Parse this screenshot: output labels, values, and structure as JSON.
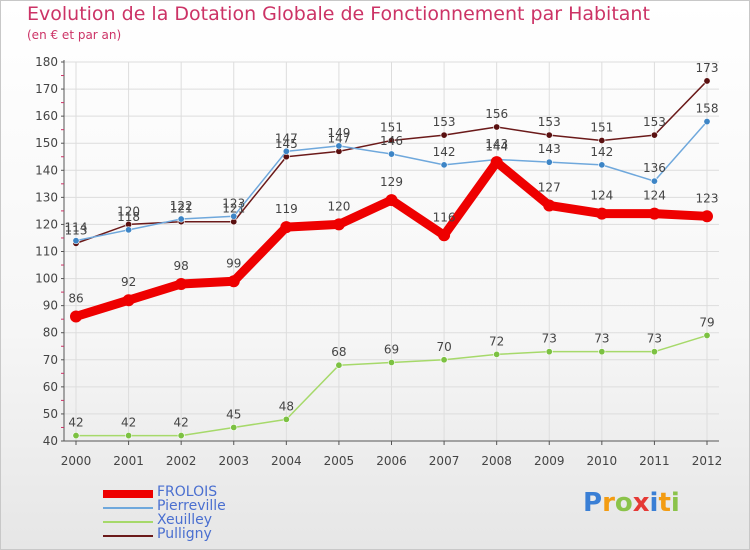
{
  "title": "Evolution de la Dotation Globale de Fonctionnement par Habitant",
  "subtitle": "(en € et par an)",
  "logo": [
    "P",
    "r",
    "o",
    "x",
    "i",
    "t",
    "i"
  ],
  "logo_colors": [
    "#3a7fd5",
    "#f39c12",
    "#8bc34a",
    "#e53935",
    "#3a7fd5",
    "#f39c12",
    "#8bc34a"
  ],
  "chart_data": {
    "type": "line",
    "title": "Evolution de la Dotation Globale de Fonctionnement par Habitant",
    "subtitle": "(en € et par an)",
    "xlabel": "",
    "ylabel": "",
    "categories": [
      "2000",
      "2001",
      "2002",
      "2003",
      "2004",
      "2005",
      "2006",
      "2007",
      "2008",
      "2009",
      "2010",
      "2011",
      "2012"
    ],
    "ylim": [
      40,
      180
    ],
    "yticks": [
      40,
      50,
      60,
      70,
      80,
      90,
      100,
      110,
      120,
      130,
      140,
      150,
      160,
      170,
      180
    ],
    "grid": true,
    "legend_position": "bottom-left",
    "series": [
      {
        "name": "Pulligny",
        "color": "#6b1a1a",
        "dot": "#5a1010",
        "values": [
          113,
          120,
          121,
          121,
          145,
          147,
          151,
          153,
          156,
          153,
          151,
          153,
          173
        ]
      },
      {
        "name": "Pierreville",
        "color": "#6fa8dc",
        "dot": "#3d85c6",
        "values": [
          114,
          118,
          122,
          123,
          147,
          149,
          146,
          142,
          144,
          143,
          142,
          136,
          158
        ]
      },
      {
        "name": "Xeuilley",
        "color": "#a6d96a",
        "dot": "#7cc142",
        "values": [
          42,
          42,
          42,
          45,
          48,
          68,
          69,
          70,
          72,
          73,
          73,
          73,
          79
        ]
      },
      {
        "name": "FROLOIS",
        "color": "#ee0000",
        "dot": "#ee0000",
        "values": [
          86,
          92,
          98,
          99,
          119,
          120,
          129,
          116,
          143,
          127,
          124,
          124,
          123
        ]
      }
    ],
    "legend": [
      "FROLOIS",
      "Pierreville",
      "Xeuilley",
      "Pulligny"
    ]
  }
}
